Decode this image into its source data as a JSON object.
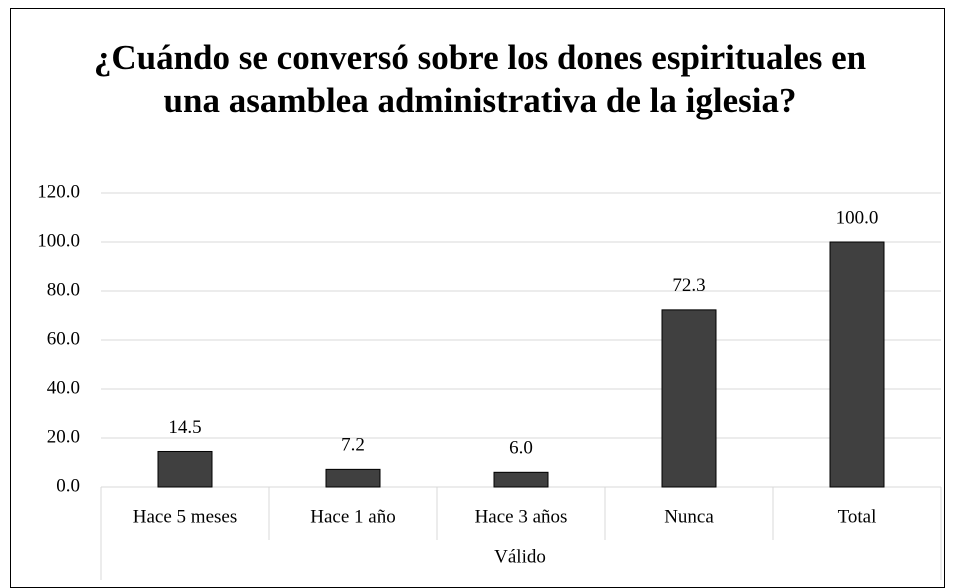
{
  "chart_data": {
    "type": "bar",
    "title": "¿Cuándo se conversó sobre los dones espirituales en una asamblea administrativa de la iglesia?",
    "x_label": "Válido",
    "categories": [
      "Hace 5 meses",
      "Hace 1 año",
      "Hace 3 años",
      "Nunca",
      "Total"
    ],
    "values": [
      14.5,
      7.2,
      6.0,
      72.3,
      100.0
    ],
    "value_labels": [
      "14.5",
      "7.2",
      "6.0",
      "72.3",
      "100.0"
    ],
    "color": "#404040",
    "ylim": [
      0,
      120
    ],
    "yticks": [
      {
        "value": 0,
        "label": "0.0"
      },
      {
        "value": 20,
        "label": "20.0"
      },
      {
        "value": 40,
        "label": "40.0"
      },
      {
        "value": 60,
        "label": "60.0"
      },
      {
        "value": 80,
        "label": "80.0"
      },
      {
        "value": 100,
        "label": "100.0"
      },
      {
        "value": 120,
        "label": "120.0"
      }
    ],
    "grid": true
  }
}
